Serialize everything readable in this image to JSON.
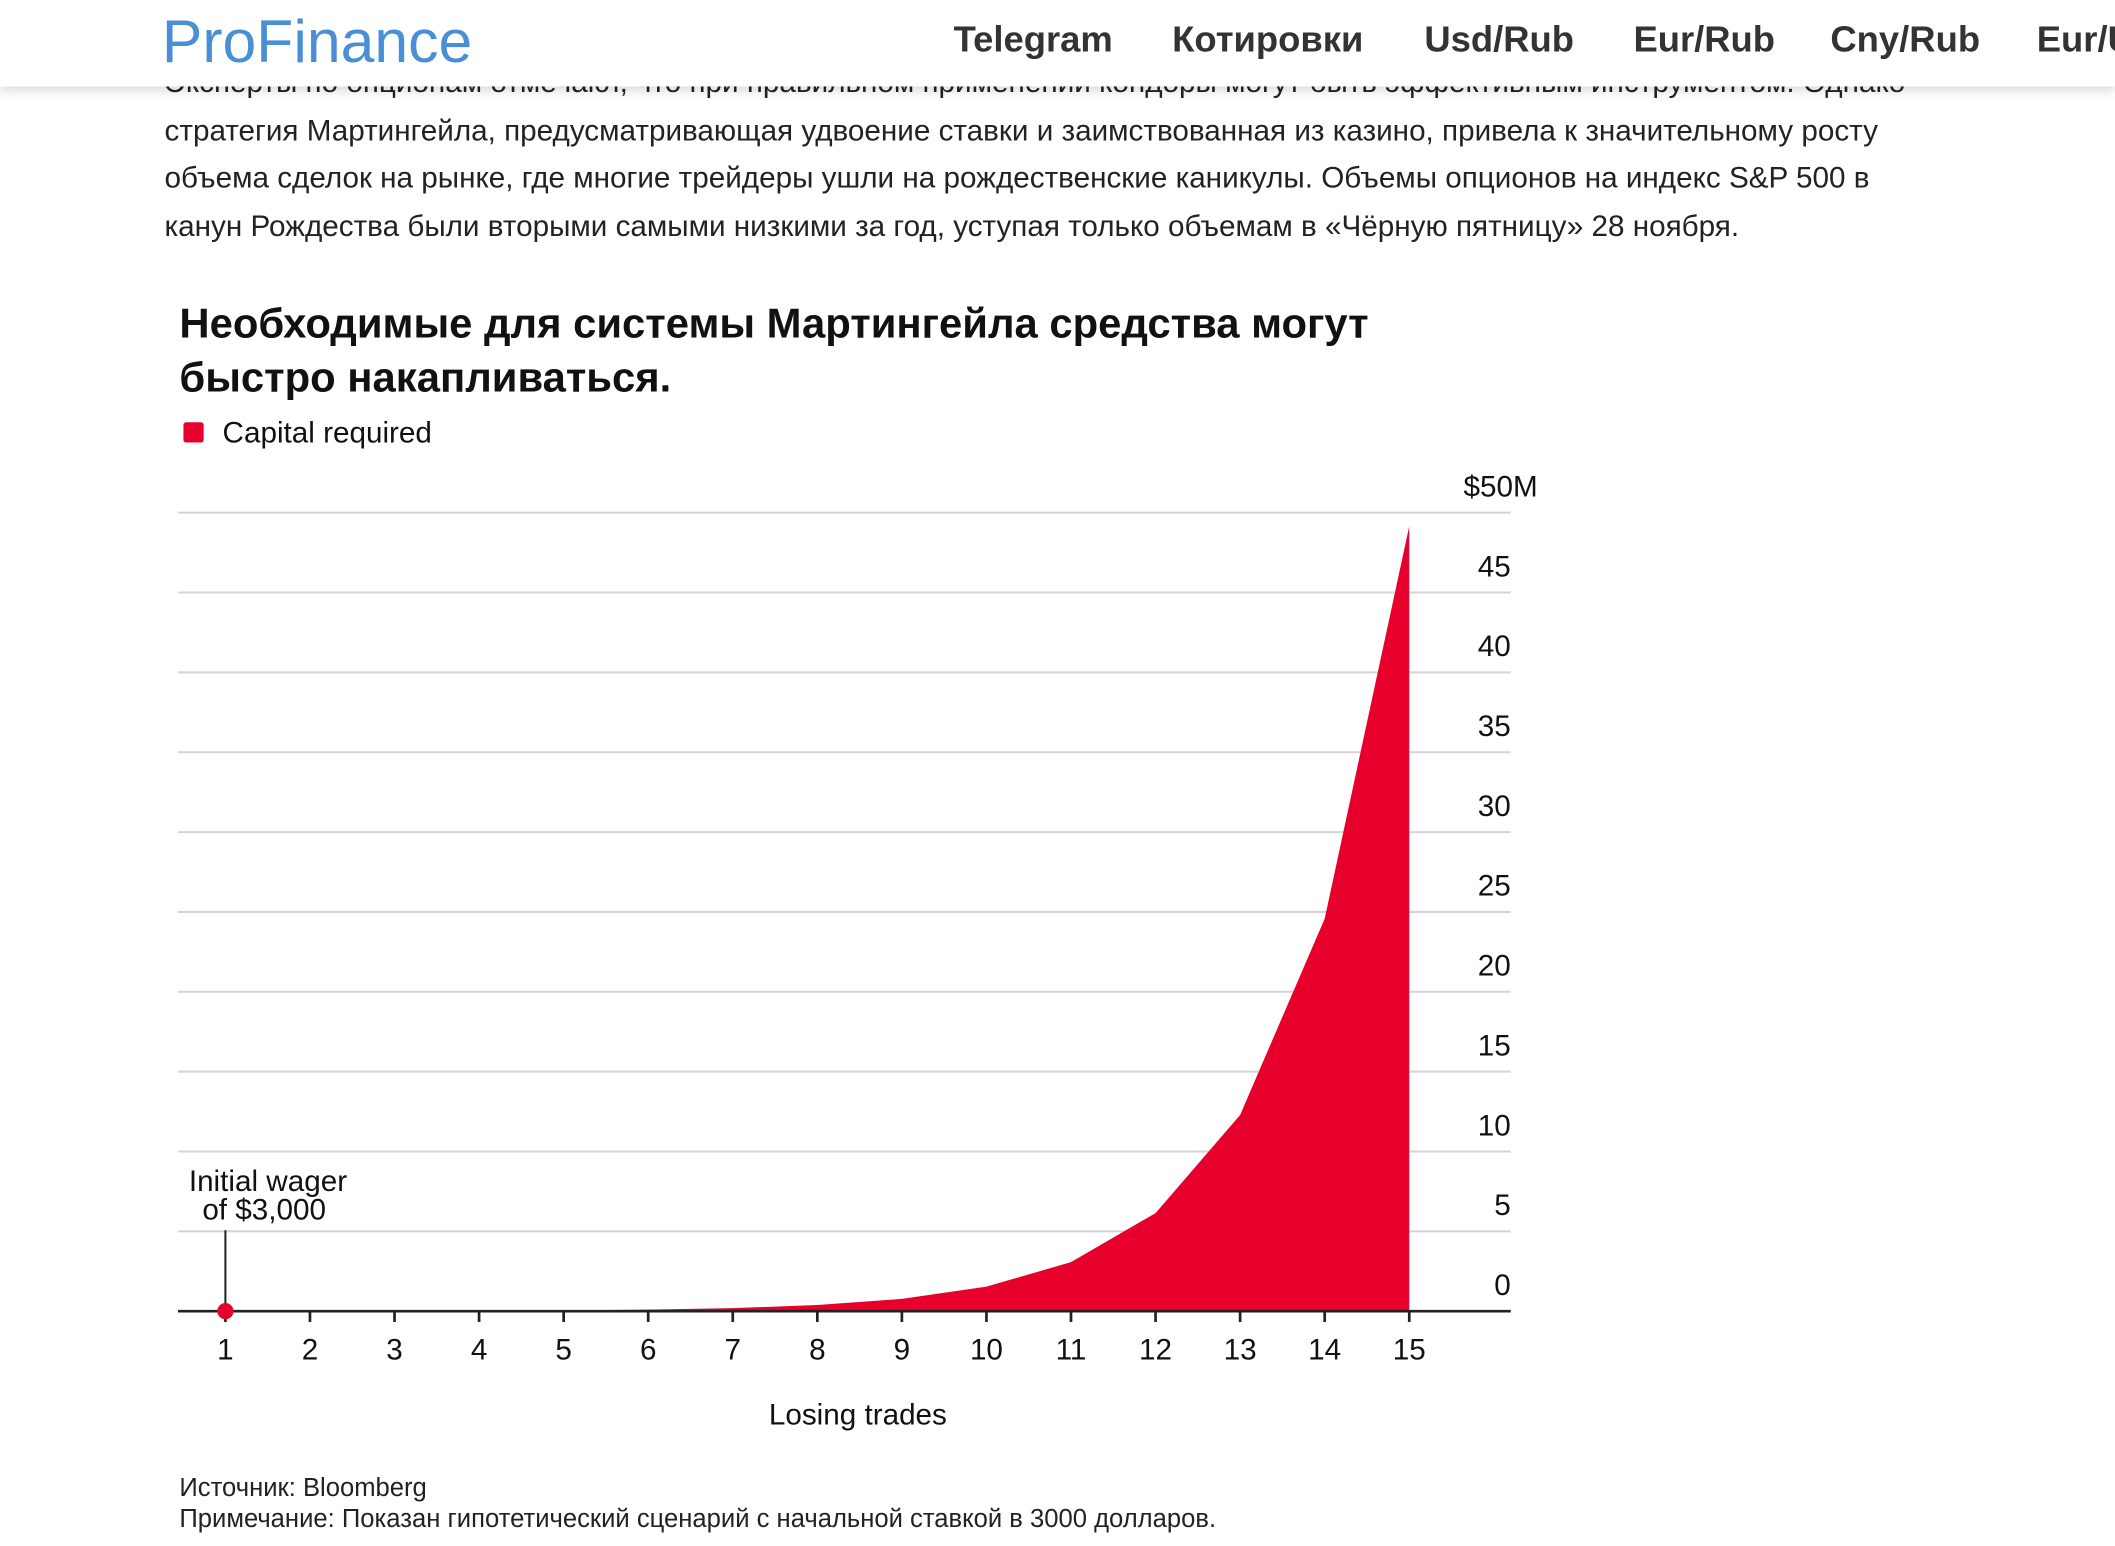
{
  "header": {
    "logo": "ProFinance",
    "nav": [
      "Telegram",
      "Котировки",
      "Usd/Rub",
      "Eur/Rub",
      "Cny/Rub",
      "Eur/Usd"
    ]
  },
  "article": {
    "paragraph": [
      "Эксперты по опционам отмечают, что при правильном применении кондоры могут быть эффективным инструментом. Однако",
      "стратегия Мартингейла, предусматривающая удвоение ставки и заимствованная из казино, привела к значительному росту",
      "объема сделок на рынке, где многие трейдеры ушли на рождественские каникулы. Объемы опционов на индекс S&P 500 в",
      "канун Рождества были вторыми самыми низкими за год, уступая только объемам в «Чёрную пятницу» 28 ноября."
    ]
  },
  "chart_data": {
    "type": "area",
    "title": [
      "Необходимые для системы Мартингейла средства могут",
      "быстро накапливаться."
    ],
    "x_label": "Losing trades",
    "x": [
      1,
      2,
      3,
      4,
      5,
      6,
      7,
      8,
      9,
      10,
      11,
      12,
      13,
      14,
      15
    ],
    "xlim": [
      0.44,
      16.2
    ],
    "series": [
      {
        "name": "Capital required",
        "color": "#e8002d",
        "values": [
          0.003,
          0.006,
          0.012,
          0.024,
          0.048,
          0.096,
          0.192,
          0.384,
          0.768,
          1.536,
          3.072,
          6.144,
          12.288,
          24.576,
          49.152
        ]
      }
    ],
    "ylim": [
      0,
      50
    ],
    "yticks": [
      0,
      5,
      10,
      15,
      20,
      25,
      30,
      35,
      40,
      45,
      {
        "value": 50,
        "label": "$50M"
      }
    ],
    "grid": true,
    "legend": "top-left",
    "annotation": [
      "Initial wager",
      "of $3,000"
    ],
    "source": "Источник: Bloomberg",
    "note": "Примечание: Показан гипотетический сценарий с начальной ставкой в 3000 долларов."
  }
}
